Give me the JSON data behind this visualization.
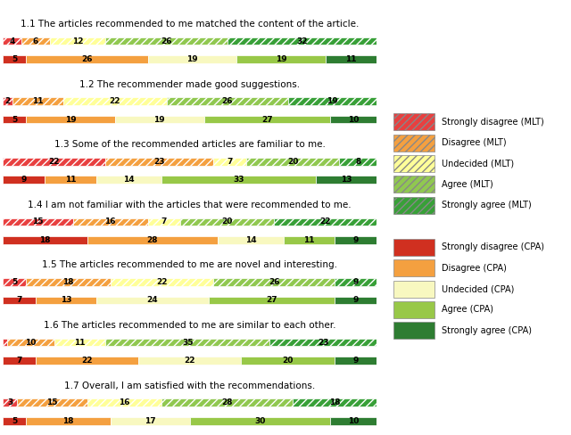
{
  "questions": [
    "1.1 The articles recommended to me matched the content of the article.",
    "1.2 The recommender made good suggestions.",
    "1.3 Some of the recommended articles are familiar to me.",
    "1.4 I am not familiar with the articles that were recommended to me.",
    "1.5 The articles recommended to me are novel and interesting.",
    "1.6 The articles recommended to me are similar to each other.",
    "1.7 Overall, I am satisfied with the recommendations."
  ],
  "mlt_data": [
    [
      4,
      6,
      12,
      26,
      32
    ],
    [
      2,
      11,
      22,
      26,
      19
    ],
    [
      22,
      23,
      7,
      20,
      8
    ],
    [
      15,
      16,
      7,
      20,
      22
    ],
    [
      5,
      18,
      22,
      26,
      9
    ],
    [
      1,
      10,
      11,
      35,
      23
    ],
    [
      3,
      15,
      16,
      28,
      18
    ]
  ],
  "cpa_data": [
    [
      5,
      26,
      19,
      19,
      11
    ],
    [
      5,
      19,
      19,
      27,
      10
    ],
    [
      9,
      11,
      14,
      33,
      13
    ],
    [
      18,
      28,
      14,
      11,
      9
    ],
    [
      7,
      13,
      24,
      27,
      9
    ],
    [
      7,
      22,
      22,
      20,
      9
    ],
    [
      5,
      18,
      17,
      30,
      10
    ]
  ],
  "mlt_colors": [
    "#e84040",
    "#f4a040",
    "#ffff99",
    "#90c850",
    "#38a038"
  ],
  "cpa_colors": [
    "#d03020",
    "#f4a040",
    "#f8f8c0",
    "#98c848",
    "#2e7d32"
  ],
  "mlt_hatches": [
    "////",
    "////",
    "////",
    "////",
    "////"
  ],
  "legend_bg": "#ececec",
  "title_fontsize": 7.5,
  "label_fontsize": 6.5,
  "legend_fontsize": 7.0
}
